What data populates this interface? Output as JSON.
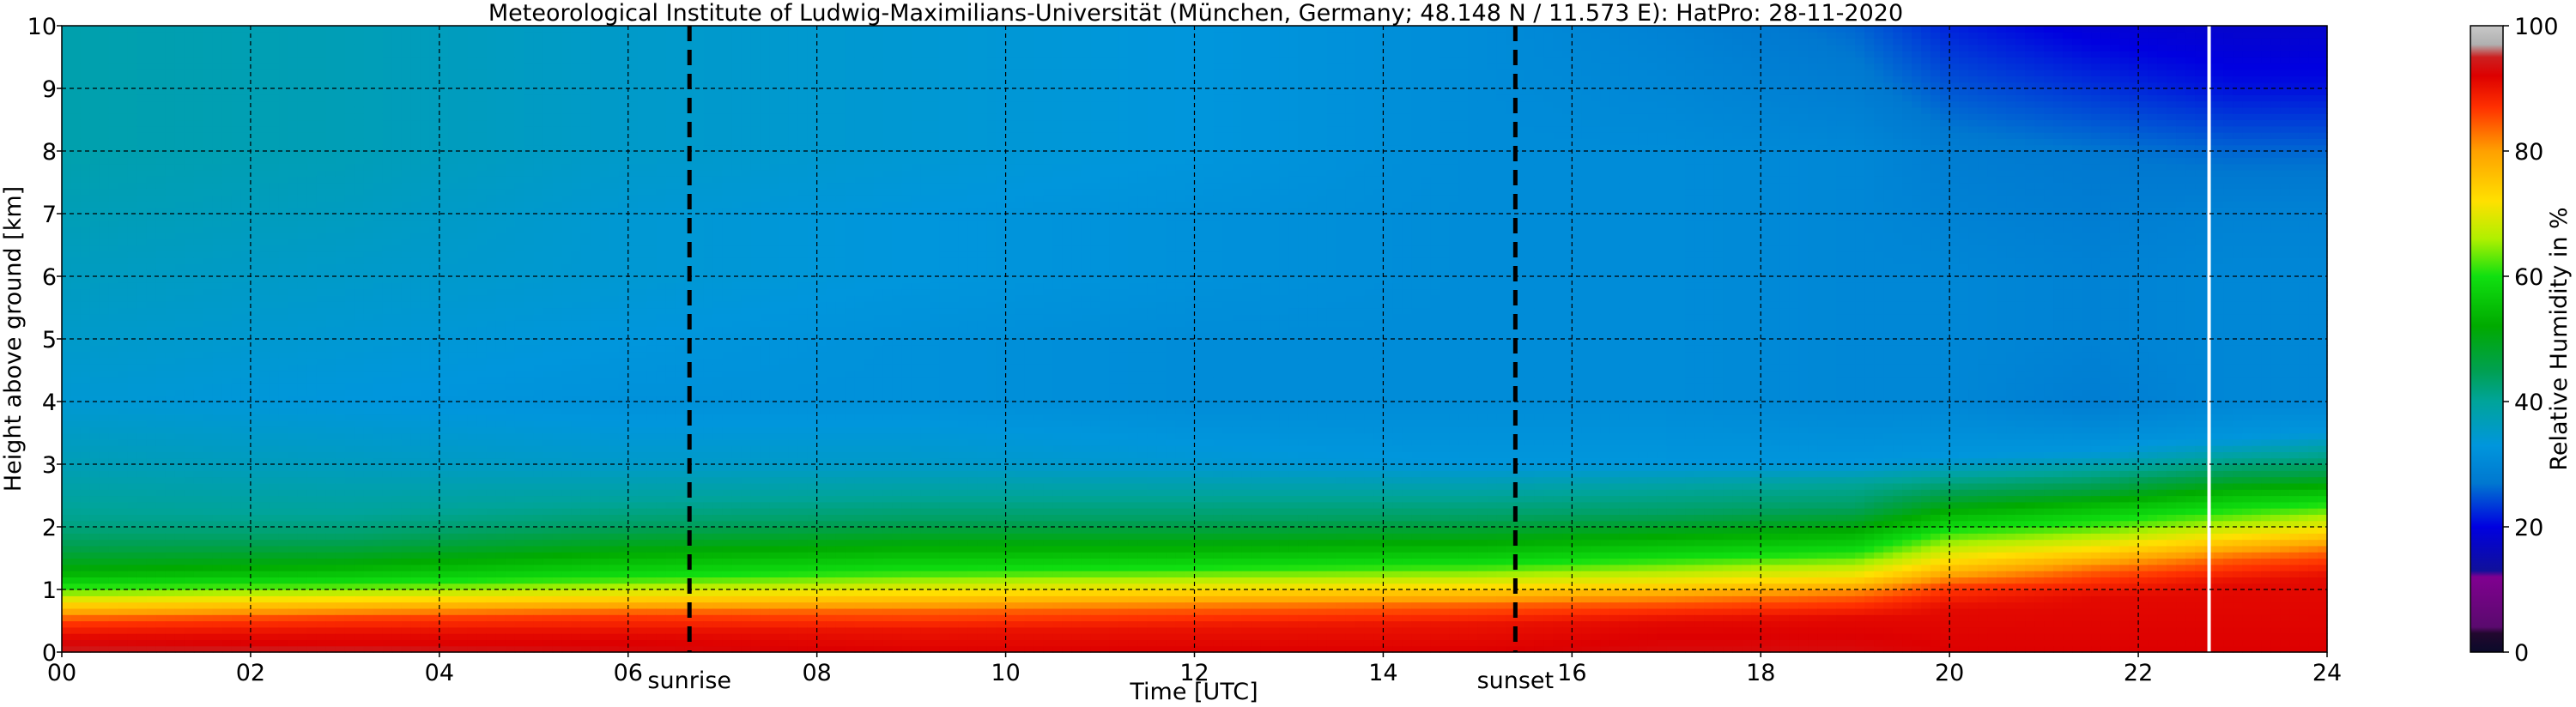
{
  "chart_data": {
    "type": "heatmap",
    "title": "Meteorological Institute of Ludwig-Maximilians-Universität (München, Germany; 48.148 N / 11.573 E):    HatPro: 28-11-2020",
    "xlabel": "Time [UTC]",
    "ylabel": "Height above ground [km]",
    "xlim": [
      0,
      24
    ],
    "ylim": [
      0,
      10
    ],
    "x_ticks": [
      "00",
      "02",
      "04",
      "06",
      "08",
      "10",
      "12",
      "14",
      "16",
      "18",
      "20",
      "22",
      "24"
    ],
    "y_ticks": [
      "0",
      "1",
      "2",
      "3",
      "4",
      "5",
      "6",
      "7",
      "8",
      "9",
      "10"
    ],
    "grid": true,
    "annotations": [
      {
        "label": "sunrise",
        "x": 6.65
      },
      {
        "label": "sunset",
        "x": 15.4
      }
    ],
    "data_gap_x": 22.75,
    "colorbar": {
      "label": "Relative Humidity in %",
      "ticks": [
        "0",
        "20",
        "40",
        "60",
        "80",
        "100"
      ],
      "range": [
        0,
        100
      ],
      "stops": [
        {
          "value": 0,
          "color": "#0a0a2a"
        },
        {
          "value": 3,
          "color": "#22082e"
        },
        {
          "value": 4,
          "color": "#5a0a6e"
        },
        {
          "value": 12,
          "color": "#800090"
        },
        {
          "value": 13,
          "color": "#10109a"
        },
        {
          "value": 20,
          "color": "#0000e0"
        },
        {
          "value": 27,
          "color": "#0078d0"
        },
        {
          "value": 33,
          "color": "#0096dc"
        },
        {
          "value": 40,
          "color": "#00a49a"
        },
        {
          "value": 45,
          "color": "#00a050"
        },
        {
          "value": 52,
          "color": "#00aa00"
        },
        {
          "value": 60,
          "color": "#10e010"
        },
        {
          "value": 66,
          "color": "#b0f000"
        },
        {
          "value": 72,
          "color": "#ffe000"
        },
        {
          "value": 80,
          "color": "#ffa000"
        },
        {
          "value": 87,
          "color": "#ff3000"
        },
        {
          "value": 92,
          "color": "#dd0000"
        },
        {
          "value": 95,
          "color": "#cc2020"
        },
        {
          "value": 97,
          "color": "#b0b0b0"
        },
        {
          "value": 100,
          "color": "#c8c8c8"
        }
      ]
    },
    "humidity_profiles": [
      {
        "time": 0,
        "points": [
          [
            0,
            97
          ],
          [
            0.05,
            94
          ],
          [
            0.2,
            92
          ],
          [
            0.5,
            86
          ],
          [
            0.8,
            72
          ],
          [
            1.0,
            62
          ],
          [
            1.3,
            52
          ],
          [
            1.7,
            45
          ],
          [
            2.1,
            41
          ],
          [
            3,
            37
          ],
          [
            4,
            34
          ],
          [
            5,
            35
          ],
          [
            6,
            36
          ],
          [
            7,
            37
          ],
          [
            8,
            38
          ],
          [
            9,
            38
          ],
          [
            10,
            38
          ]
        ]
      },
      {
        "time": 3,
        "points": [
          [
            0,
            96
          ],
          [
            0.1,
            92
          ],
          [
            0.3,
            91
          ],
          [
            0.55,
            86
          ],
          [
            0.85,
            72
          ],
          [
            1.1,
            60
          ],
          [
            1.4,
            52
          ],
          [
            1.8,
            44
          ],
          [
            2.2,
            40
          ],
          [
            3,
            36
          ],
          [
            4,
            33
          ],
          [
            5,
            34
          ],
          [
            6,
            35
          ],
          [
            7,
            36
          ],
          [
            8,
            37
          ],
          [
            9,
            37
          ],
          [
            10,
            37
          ]
        ]
      },
      {
        "time": 6,
        "points": [
          [
            0,
            93
          ],
          [
            0.3,
            91
          ],
          [
            0.6,
            86
          ],
          [
            0.9,
            72
          ],
          [
            1.2,
            60
          ],
          [
            1.6,
            52
          ],
          [
            2.0,
            44
          ],
          [
            2.4,
            40
          ],
          [
            3,
            35
          ],
          [
            4,
            32
          ],
          [
            5,
            33
          ],
          [
            6,
            34
          ],
          [
            7,
            34
          ],
          [
            8,
            35
          ],
          [
            9,
            35
          ],
          [
            10,
            35
          ]
        ]
      },
      {
        "time": 9,
        "points": [
          [
            0,
            92
          ],
          [
            0.35,
            90
          ],
          [
            0.65,
            84
          ],
          [
            0.95,
            72
          ],
          [
            1.3,
            60
          ],
          [
            1.75,
            51
          ],
          [
            2.1,
            44
          ],
          [
            2.5,
            40
          ],
          [
            3,
            35
          ],
          [
            4,
            32
          ],
          [
            5,
            32
          ],
          [
            6,
            33
          ],
          [
            7,
            33
          ],
          [
            8,
            34
          ],
          [
            9,
            34
          ],
          [
            10,
            34
          ]
        ]
      },
      {
        "time": 12,
        "points": [
          [
            0,
            92
          ],
          [
            0.4,
            90
          ],
          [
            0.7,
            84
          ],
          [
            1.0,
            72
          ],
          [
            1.35,
            60
          ],
          [
            1.75,
            51
          ],
          [
            2.1,
            44
          ],
          [
            2.5,
            40
          ],
          [
            3,
            34
          ],
          [
            4,
            31
          ],
          [
            5,
            31
          ],
          [
            6,
            32
          ],
          [
            7,
            32
          ],
          [
            8,
            33
          ],
          [
            9,
            33
          ],
          [
            10,
            33
          ]
        ]
      },
      {
        "time": 15,
        "points": [
          [
            0,
            92
          ],
          [
            0.45,
            90
          ],
          [
            0.75,
            84
          ],
          [
            1.05,
            72
          ],
          [
            1.4,
            60
          ],
          [
            1.8,
            51
          ],
          [
            2.15,
            44
          ],
          [
            2.5,
            40
          ],
          [
            3,
            33
          ],
          [
            4,
            31
          ],
          [
            5,
            31
          ],
          [
            6,
            31
          ],
          [
            7,
            31
          ],
          [
            8,
            31
          ],
          [
            9,
            31
          ],
          [
            10,
            31
          ]
        ]
      },
      {
        "time": 17,
        "points": [
          [
            0,
            93
          ],
          [
            0.5,
            91
          ],
          [
            0.8,
            84
          ],
          [
            1.1,
            72
          ],
          [
            1.5,
            60
          ],
          [
            1.9,
            51
          ],
          [
            2.2,
            44
          ],
          [
            2.6,
            40
          ],
          [
            3,
            33
          ],
          [
            4,
            31
          ],
          [
            5,
            31
          ],
          [
            6,
            31
          ],
          [
            7,
            31
          ],
          [
            8,
            31
          ],
          [
            9,
            30
          ],
          [
            10,
            29
          ]
        ]
      },
      {
        "time": 19,
        "points": [
          [
            0,
            93
          ],
          [
            0.55,
            91
          ],
          [
            0.9,
            84
          ],
          [
            1.2,
            72
          ],
          [
            1.6,
            60
          ],
          [
            2.0,
            51
          ],
          [
            2.3,
            44
          ],
          [
            2.7,
            40
          ],
          [
            3,
            33
          ],
          [
            4,
            30
          ],
          [
            5,
            30
          ],
          [
            6,
            30
          ],
          [
            7,
            30
          ],
          [
            8,
            30
          ],
          [
            9,
            28
          ],
          [
            10,
            26
          ]
        ]
      },
      {
        "time": 20,
        "points": [
          [
            0,
            92
          ],
          [
            0.7,
            91
          ],
          [
            1.05,
            86
          ],
          [
            1.4,
            74
          ],
          [
            1.8,
            64
          ],
          [
            2.2,
            54
          ],
          [
            2.5,
            46
          ],
          [
            2.8,
            40
          ],
          [
            3.1,
            33
          ],
          [
            4,
            30
          ],
          [
            5,
            30
          ],
          [
            6,
            30
          ],
          [
            7,
            29
          ],
          [
            8,
            28
          ],
          [
            9,
            25
          ],
          [
            10,
            22
          ]
        ]
      },
      {
        "time": 21.5,
        "points": [
          [
            0,
            92
          ],
          [
            0.9,
            91
          ],
          [
            1.3,
            84
          ],
          [
            1.65,
            72
          ],
          [
            2.0,
            62
          ],
          [
            2.35,
            54
          ],
          [
            2.6,
            46
          ],
          [
            2.9,
            40
          ],
          [
            3.2,
            33
          ],
          [
            4,
            28
          ],
          [
            5,
            29
          ],
          [
            6,
            29
          ],
          [
            7,
            28
          ],
          [
            8,
            27
          ],
          [
            9,
            23
          ],
          [
            10,
            19
          ]
        ]
      },
      {
        "time": 23,
        "points": [
          [
            0,
            92
          ],
          [
            1.1,
            91
          ],
          [
            1.5,
            84
          ],
          [
            1.85,
            72
          ],
          [
            2.2,
            62
          ],
          [
            2.55,
            54
          ],
          [
            2.8,
            46
          ],
          [
            3.1,
            40
          ],
          [
            3.4,
            33
          ],
          [
            4,
            30
          ],
          [
            5,
            30
          ],
          [
            6,
            30
          ],
          [
            7,
            29
          ],
          [
            8,
            26
          ],
          [
            9,
            21
          ],
          [
            10,
            18
          ]
        ]
      },
      {
        "time": 24,
        "points": [
          [
            0,
            92
          ],
          [
            1.2,
            91
          ],
          [
            1.6,
            84
          ],
          [
            1.95,
            72
          ],
          [
            2.3,
            62
          ],
          [
            2.6,
            54
          ],
          [
            2.85,
            46
          ],
          [
            3.2,
            40
          ],
          [
            3.5,
            33
          ],
          [
            4,
            30
          ],
          [
            5,
            30
          ],
          [
            6,
            30
          ],
          [
            7,
            29
          ],
          [
            8,
            26
          ],
          [
            9,
            21
          ],
          [
            10,
            18
          ]
        ]
      }
    ]
  }
}
